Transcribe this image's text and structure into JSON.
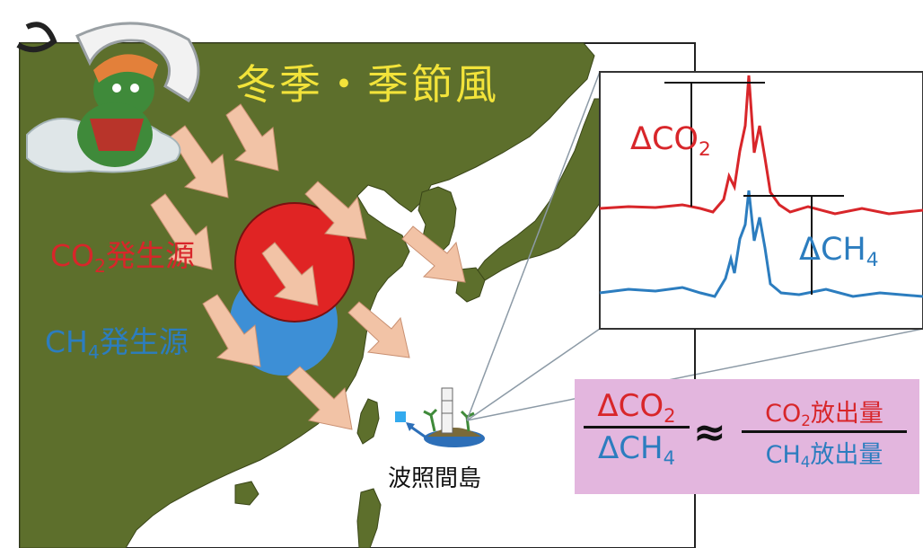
{
  "map": {
    "monsoon_label": "冬季・季節風",
    "co2_source": {
      "main": "CO",
      "sub": "2",
      "rest": "発生源"
    },
    "ch4_source": {
      "main": "CH",
      "sub": "4",
      "rest": "発生源"
    },
    "island_label": "波照間島"
  },
  "inset": {
    "delta_co2": {
      "main": "ΔCO",
      "sub": "2"
    },
    "delta_ch4": {
      "main": "ΔCH",
      "sub": "4"
    },
    "colors": {
      "co2": "#d8262a",
      "ch4": "#2c7dbf"
    }
  },
  "formula": {
    "left_num": {
      "main": "ΔCO",
      "sub": "2"
    },
    "left_den": {
      "main": "ΔCH",
      "sub": "4"
    },
    "approx": "≈",
    "right_num": {
      "main": "CO",
      "sub": "2",
      "rest": "放出量"
    },
    "right_den": {
      "main": "CH",
      "sub": "4",
      "rest": "放出量"
    }
  },
  "colors": {
    "land": "#5d6f2c",
    "arrow": "#f2c3a6",
    "co2_circle": "#e02424",
    "ch4_circle": "#3d8fd6",
    "formula_bg": "#e3b6de"
  }
}
